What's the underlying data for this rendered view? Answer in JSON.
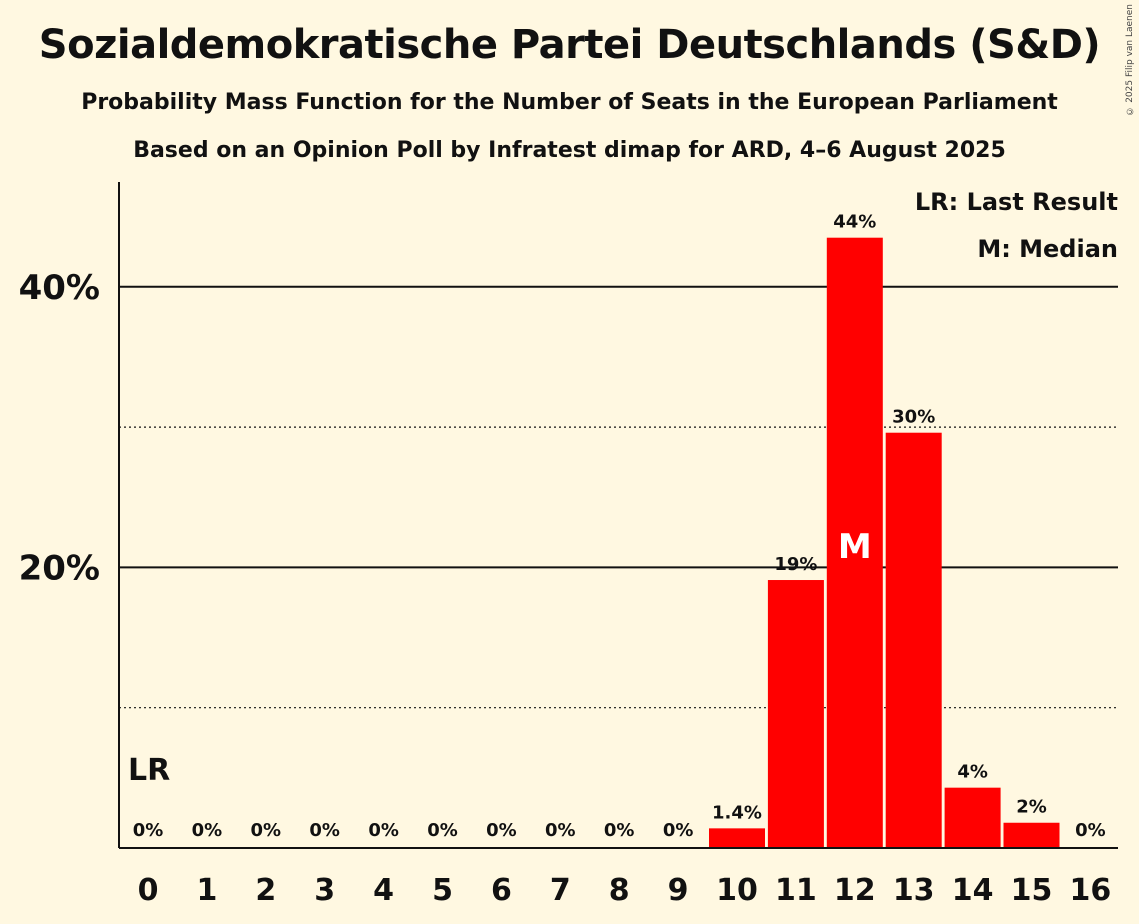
{
  "title": "Sozialdemokratische Partei Deutschlands (S&D)",
  "subtitle": "Probability Mass Function for the Number of Seats in the European Parliament",
  "subtitle2": "Based on an Opinion Poll by Infratest dimap for ARD, 4–6 August 2025",
  "copyright": "© 2025 Filip van Laenen",
  "colors": {
    "bar": "#ff0000",
    "background": "#fff8e1",
    "text": "#111111"
  },
  "chart_data": {
    "type": "bar",
    "categories": [
      "0",
      "1",
      "2",
      "3",
      "4",
      "5",
      "6",
      "7",
      "8",
      "9",
      "10",
      "11",
      "12",
      "13",
      "14",
      "15",
      "16"
    ],
    "values": [
      0,
      0,
      0,
      0,
      0,
      0,
      0,
      0,
      0,
      0,
      1.4,
      19.1,
      43.5,
      29.6,
      4.3,
      1.8,
      0
    ],
    "value_labels": [
      "0%",
      "0%",
      "0%",
      "0%",
      "0%",
      "0%",
      "0%",
      "0%",
      "0%",
      "0%",
      "1.4%",
      "19%",
      "44%",
      "30%",
      "4%",
      "2%",
      "0%"
    ],
    "ylim": [
      0,
      47
    ],
    "yticks": [
      20,
      40
    ],
    "ytick_labels": [
      "20%",
      "40%"
    ],
    "minor_gridlines": [
      10,
      30
    ],
    "last_result_category": "0",
    "last_result_label": "LR",
    "median_category": "12",
    "median_label": "M",
    "legend": [
      "LR: Last Result",
      "M: Median"
    ],
    "legend_position": "top-right"
  }
}
